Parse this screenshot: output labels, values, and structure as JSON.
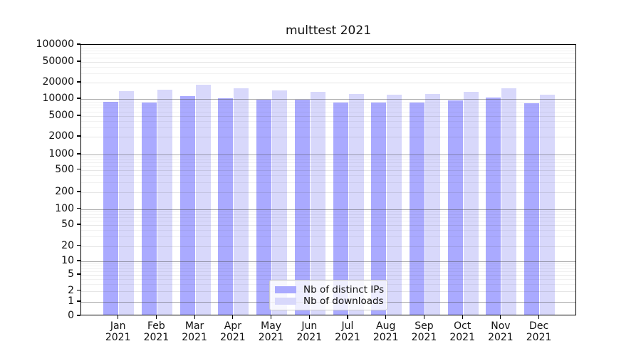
{
  "figure": {
    "title": "multtest 2021"
  },
  "chart_data": {
    "type": "bar",
    "title": "multtest 2021",
    "categories": [
      "Jan",
      "Feb",
      "Mar",
      "Apr",
      "May",
      "Jun",
      "Jul",
      "Aug",
      "Sep",
      "Oct",
      "Nov",
      "Dec"
    ],
    "year": "2021",
    "series": [
      {
        "name": "Nb of distinct IPs",
        "color": "#aaaaff",
        "values": [
          8500,
          8200,
          10700,
          9700,
          9300,
          9300,
          8300,
          8200,
          8300,
          9000,
          10000,
          7900
        ]
      },
      {
        "name": "Nb of downloads",
        "color": "#d8d8fb",
        "values": [
          13000,
          14000,
          17000,
          15000,
          13400,
          12700,
          11700,
          11300,
          11700,
          12700,
          14800,
          11300
        ]
      }
    ],
    "xlabel": "",
    "ylabel": "",
    "ylim": [
      0,
      100000
    ],
    "yscale": "symlog",
    "y_ticks": [
      0,
      1,
      2,
      5,
      10,
      20,
      50,
      100,
      200,
      500,
      1000,
      2000,
      5000,
      10000,
      20000,
      50000,
      100000
    ],
    "grid": true,
    "legend_position": "lower center",
    "y_scale_anchors": [
      [
        0,
        1.0
      ],
      [
        1,
        0.9475
      ],
      [
        2,
        0.9068
      ],
      [
        5,
        0.8478
      ],
      [
        10,
        0.7979
      ],
      [
        20,
        0.7415
      ],
      [
        50,
        0.664
      ],
      [
        100,
        0.605
      ],
      [
        200,
        0.5433
      ],
      [
        500,
        0.4606
      ],
      [
        1000,
        0.4042
      ],
      [
        2000,
        0.3386
      ],
      [
        5000,
        0.2625
      ],
      [
        10000,
        0.1995
      ],
      [
        20000,
        0.1391
      ],
      [
        50000,
        0.063
      ],
      [
        100000,
        0.0
      ]
    ]
  },
  "legend": {
    "items": [
      {
        "label": "Nb of distinct IPs",
        "color": "#aaaaff"
      },
      {
        "label": "Nb of downloads",
        "color": "#d8d8fb"
      }
    ]
  },
  "colors": {
    "bar_ip": "#aaaaff",
    "bar_dl": "#d8d8fb",
    "decade_gridline": "#9f9f9f",
    "major_gridline": "#dfdfdf",
    "minor_gridline": "#f1f1f1",
    "spine": "#000000",
    "text": "#111111"
  }
}
